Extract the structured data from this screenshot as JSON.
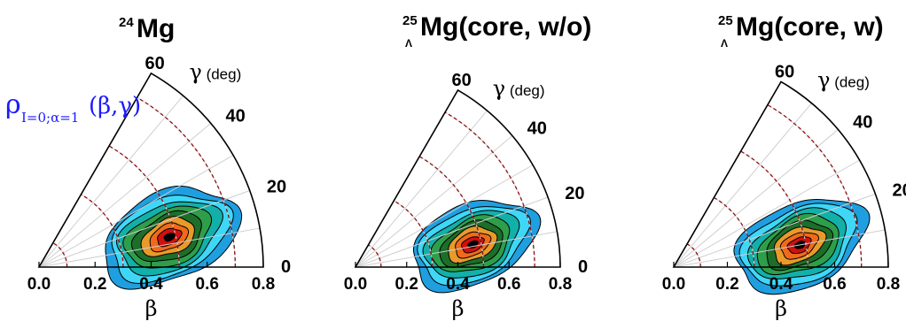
{
  "chart_data": {
    "type": "heatmap",
    "subtype": "polar-sector contour",
    "annotation": {
      "text": "ρ",
      "subscript": "I=0;α=1",
      "arg": "(β,γ)",
      "color": "#1a1aff"
    },
    "panels": [
      {
        "title_sup": "24",
        "title_pre": "",
        "title_text": "Mg",
        "peak": {
          "beta": 0.48,
          "gamma": 13
        }
      },
      {
        "title_sup": "25",
        "title_pre": "Λ",
        "title_text": "Mg(core, w/o)",
        "peak": {
          "beta": 0.47,
          "gamma": 11
        }
      },
      {
        "title_sup": "25",
        "title_pre": "Λ",
        "title_text": "Mg(core, w)",
        "peak": {
          "beta": 0.48,
          "gamma": 10
        }
      }
    ],
    "beta_axis": {
      "label": "β",
      "ticks": [
        "0.0",
        "0.2",
        "0.4",
        "0.6",
        "0.8"
      ],
      "range": [
        0,
        0.8
      ]
    },
    "gamma_axis": {
      "label": "γ",
      "unit": "(deg)",
      "ticks": [
        "0",
        "20",
        "40",
        "60"
      ],
      "range": [
        0,
        60
      ]
    },
    "contour_colors": [
      "#1f9fe0",
      "#3fd7f7",
      "#12b0a8",
      "#2f9e4a",
      "#1c6e2a",
      "#e89a2a",
      "#f06a1a",
      "#d01010",
      "#000000"
    ],
    "grid": {
      "gamma_lines_every": 10,
      "beta_dashed_every": 0.2,
      "color_dashed": "#8b1010"
    }
  }
}
